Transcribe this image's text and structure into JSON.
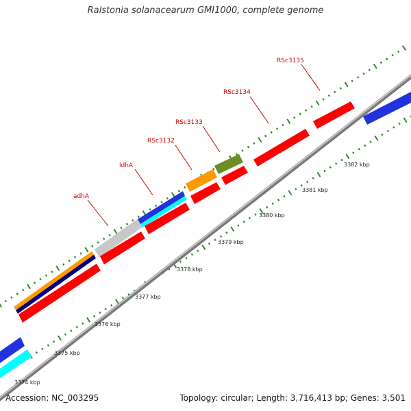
{
  "title": "Ralstonia solanacearum GMI1000, complete genome",
  "footer": {
    "accession": "Accession: NC_003295",
    "summary": "Topology: circular; Length: 3,716,413 bp; Genes: 3,501"
  },
  "colors": {
    "cds": "#ff0000",
    "backbone": "#999999",
    "tick": "#2a8a2a",
    "label": "#cc0000",
    "orange": "#ff9900",
    "navy": "#000080",
    "gray": "#c0c0c0",
    "blue": "#2233dd",
    "cyan": "#00ffff",
    "olive": "#6b8e23"
  },
  "kbp_labels": [
    "3374 kbp",
    "3375 kbp",
    "3376 kbp",
    "3377 kbp",
    "3378 kbp",
    "3379 kbp",
    "3380 kbp",
    "3381 kbp",
    "3382 kbp"
  ],
  "gene_labels": [
    "adhA",
    "ldhA",
    "RSc3132",
    "RSc3133",
    "RSc3134",
    "RSc3135"
  ]
}
